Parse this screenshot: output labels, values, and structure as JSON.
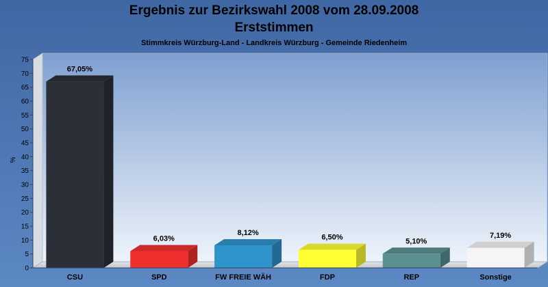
{
  "chart_data": {
    "type": "bar",
    "title_line1": "Ergebnis zur Bezirkswahl 2008 vom 28.09.2008",
    "title_line2": "Erststimmen",
    "subtitle": "Stimmkreis Würzburg-Land - Landkreis Würzburg - Gemeinde Riedenheim",
    "ylabel": "%",
    "ylim": [
      0,
      75
    ],
    "ytick_step": 5,
    "grid": false,
    "categories": [
      "CSU",
      "SPD",
      "FW FREIE WÄH",
      "FDP",
      "REP",
      "Sonstige"
    ],
    "values": [
      67.05,
      6.03,
      8.12,
      6.5,
      5.1,
      7.19
    ],
    "labels": [
      "67,05%",
      "6,03%",
      "8,12%",
      "6,50%",
      "5,10%",
      "7,19%"
    ],
    "colors": [
      "#2b2f37",
      "#f0302f",
      "#2f93cc",
      "#ffff33",
      "#5a9090",
      "#f5f5f5"
    ]
  }
}
